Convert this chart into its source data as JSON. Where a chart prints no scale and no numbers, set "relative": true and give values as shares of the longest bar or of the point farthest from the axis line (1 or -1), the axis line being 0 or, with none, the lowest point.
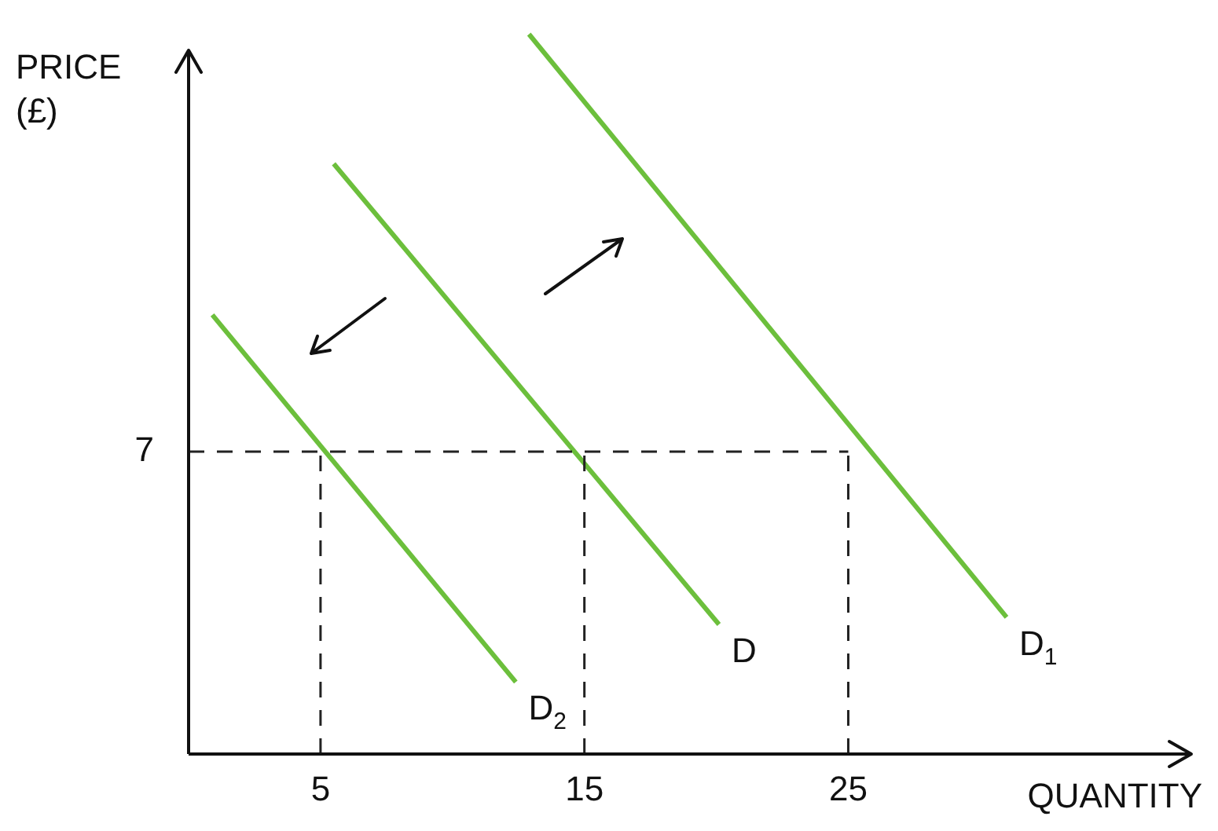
{
  "chart_data": {
    "type": "line",
    "xlabel": "QUANTITY",
    "ylabel": "PRICE\n(£)",
    "relative": true,
    "xlim": [
      0,
      38
    ],
    "xticks": [
      5,
      15,
      25
    ],
    "grid": false,
    "legend": false,
    "marker": "none",
    "line_style": "solid",
    "series": [
      {
        "name": "D$_{2}$",
        "color": "#6cbf3c",
        "x": [
          0.9,
          12.4
        ],
        "values": [
          0.61,
          0.1
        ]
      },
      {
        "name": "D",
        "color": "#6cbf3c",
        "x": [
          5.5,
          20.1
        ],
        "values": [
          0.82,
          0.18
        ]
      },
      {
        "name": "D$_{1}$",
        "color": "#6cbf3c",
        "x": [
          12.9,
          31.0
        ],
        "values": [
          1.0,
          0.19
        ]
      }
    ],
    "ref_lines": [
      {
        "axis": "y",
        "value": 0.42,
        "color": "#222222",
        "line_style": "dashed"
      },
      {
        "axis": "x",
        "value": 5,
        "color": "#222222",
        "line_style": "dashed"
      },
      {
        "axis": "x",
        "value": 15,
        "color": "#222222",
        "line_style": "dashed"
      },
      {
        "axis": "x",
        "value": 25,
        "color": "#222222",
        "line_style": "dashed"
      }
    ],
    "annotations": [
      {
        "text": "7",
        "x": 0,
        "y": 0.42
      }
    ]
  }
}
